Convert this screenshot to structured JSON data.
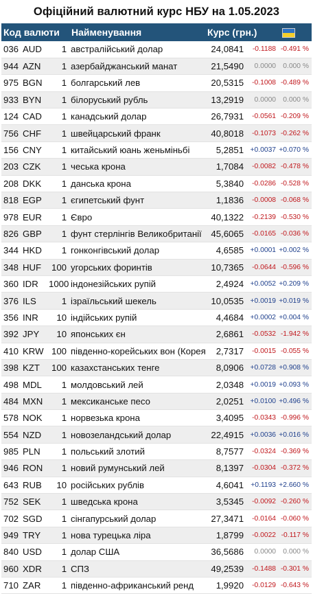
{
  "title": "Офіційний валютний курс НБУ на 1.05.2023",
  "headers": {
    "code": "Код валюти",
    "name": "Найменування",
    "rate": "Курс (грн.)"
  },
  "flag_colors": {
    "top": "#2f74c5",
    "bottom": "#f6cf2a"
  },
  "rows": [
    {
      "num": "036",
      "code": "AUD",
      "qty": "1",
      "name": "австралійський долар",
      "rate": "24,0841",
      "chg": "-0.1188",
      "pct": "-0.491 %",
      "dir": "neg"
    },
    {
      "num": "944",
      "code": "AZN",
      "qty": "1",
      "name": "азербайджанський манат",
      "rate": "21,5490",
      "chg": "0.0000",
      "pct": "0.000 %",
      "dir": "zero"
    },
    {
      "num": "975",
      "code": "BGN",
      "qty": "1",
      "name": "болгарський лев",
      "rate": "20,5315",
      "chg": "-0.1008",
      "pct": "-0.489 %",
      "dir": "neg"
    },
    {
      "num": "933",
      "code": "BYN",
      "qty": "1",
      "name": "білоруський рубль",
      "rate": "13,2919",
      "chg": "0.0000",
      "pct": "0.000 %",
      "dir": "zero"
    },
    {
      "num": "124",
      "code": "CAD",
      "qty": "1",
      "name": "канадський долар",
      "rate": "26,7931",
      "chg": "-0.0561",
      "pct": "-0.209 %",
      "dir": "neg"
    },
    {
      "num": "756",
      "code": "CHF",
      "qty": "1",
      "name": "швейцарський франк",
      "rate": "40,8018",
      "chg": "-0.1073",
      "pct": "-0.262 %",
      "dir": "neg"
    },
    {
      "num": "156",
      "code": "CNY",
      "qty": "1",
      "name": "китайський юань женьміньбі",
      "rate": "5,2851",
      "chg": "+0.0037",
      "pct": "+0.070 %",
      "dir": "pos"
    },
    {
      "num": "203",
      "code": "CZK",
      "qty": "1",
      "name": "чеська крона",
      "rate": "1,7084",
      "chg": "-0.0082",
      "pct": "-0.478 %",
      "dir": "neg"
    },
    {
      "num": "208",
      "code": "DKK",
      "qty": "1",
      "name": "данська крона",
      "rate": "5,3840",
      "chg": "-0.0286",
      "pct": "-0.528 %",
      "dir": "neg"
    },
    {
      "num": "818",
      "code": "EGP",
      "qty": "1",
      "name": "єгипетський фунт",
      "rate": "1,1836",
      "chg": "-0.0008",
      "pct": "-0.068 %",
      "dir": "neg"
    },
    {
      "num": "978",
      "code": "EUR",
      "qty": "1",
      "name": "Євро",
      "rate": "40,1322",
      "chg": "-0.2139",
      "pct": "-0.530 %",
      "dir": "neg"
    },
    {
      "num": "826",
      "code": "GBP",
      "qty": "1",
      "name": "фунт стерлінгів Великобританії",
      "rate": "45,6065",
      "chg": "-0.0165",
      "pct": "-0.036 %",
      "dir": "neg"
    },
    {
      "num": "344",
      "code": "HKD",
      "qty": "1",
      "name": "гонконгівський долар",
      "rate": "4,6585",
      "chg": "+0.0001",
      "pct": "+0.002 %",
      "dir": "pos"
    },
    {
      "num": "348",
      "code": "HUF",
      "qty": "100",
      "name": "угорських форинтів",
      "rate": "10,7365",
      "chg": "-0.0644",
      "pct": "-0.596 %",
      "dir": "neg"
    },
    {
      "num": "360",
      "code": "IDR",
      "qty": "1000",
      "name": "індонезійських рупій",
      "rate": "2,4924",
      "chg": "+0.0052",
      "pct": "+0.209 %",
      "dir": "pos"
    },
    {
      "num": "376",
      "code": "ILS",
      "qty": "1",
      "name": "ізраїльський шекель",
      "rate": "10,0535",
      "chg": "+0.0019",
      "pct": "+0.019 %",
      "dir": "pos"
    },
    {
      "num": "356",
      "code": "INR",
      "qty": "10",
      "name": "індійських рупій",
      "rate": "4,4684",
      "chg": "+0.0002",
      "pct": "+0.004 %",
      "dir": "pos"
    },
    {
      "num": "392",
      "code": "JPY",
      "qty": "10",
      "name": "японських єн",
      "rate": "2,6861",
      "chg": "-0.0532",
      "pct": "-1.942 %",
      "dir": "neg"
    },
    {
      "num": "410",
      "code": "KRW",
      "qty": "100",
      "name": "південно-корейських вон (Корея)",
      "rate": "2,7317",
      "chg": "-0.0015",
      "pct": "-0.055 %",
      "dir": "neg"
    },
    {
      "num": "398",
      "code": "KZT",
      "qty": "100",
      "name": "казахстанських тенге",
      "rate": "8,0906",
      "chg": "+0.0728",
      "pct": "+0.908 %",
      "dir": "pos"
    },
    {
      "num": "498",
      "code": "MDL",
      "qty": "1",
      "name": "молдовський лей",
      "rate": "2,0348",
      "chg": "+0.0019",
      "pct": "+0.093 %",
      "dir": "pos"
    },
    {
      "num": "484",
      "code": "MXN",
      "qty": "1",
      "name": "мексиканське песо",
      "rate": "2,0251",
      "chg": "+0.0100",
      "pct": "+0.496 %",
      "dir": "pos"
    },
    {
      "num": "578",
      "code": "NOK",
      "qty": "1",
      "name": "норвезька крона",
      "rate": "3,4095",
      "chg": "-0.0343",
      "pct": "-0.996 %",
      "dir": "neg"
    },
    {
      "num": "554",
      "code": "NZD",
      "qty": "1",
      "name": "новозеландський долар",
      "rate": "22,4915",
      "chg": "+0.0036",
      "pct": "+0.016 %",
      "dir": "pos"
    },
    {
      "num": "985",
      "code": "PLN",
      "qty": "1",
      "name": "польський злотий",
      "rate": "8,7577",
      "chg": "-0.0324",
      "pct": "-0.369 %",
      "dir": "neg"
    },
    {
      "num": "946",
      "code": "RON",
      "qty": "1",
      "name": "новий румунський лей",
      "rate": "8,1397",
      "chg": "-0.0304",
      "pct": "-0.372 %",
      "dir": "neg"
    },
    {
      "num": "643",
      "code": "RUB",
      "qty": "10",
      "name": "російських рублів",
      "rate": "4,6041",
      "chg": "+0.1193",
      "pct": "+2.660 %",
      "dir": "pos"
    },
    {
      "num": "752",
      "code": "SEK",
      "qty": "1",
      "name": "шведська крона",
      "rate": "3,5345",
      "chg": "-0.0092",
      "pct": "-0.260 %",
      "dir": "neg"
    },
    {
      "num": "702",
      "code": "SGD",
      "qty": "1",
      "name": "сінгапурський долар",
      "rate": "27,3471",
      "chg": "-0.0164",
      "pct": "-0.060 %",
      "dir": "neg"
    },
    {
      "num": "949",
      "code": "TRY",
      "qty": "1",
      "name": "нова турецька ліра",
      "rate": "1,8799",
      "chg": "-0.0022",
      "pct": "-0.117 %",
      "dir": "neg"
    },
    {
      "num": "840",
      "code": "USD",
      "qty": "1",
      "name": "долар США",
      "rate": "36,5686",
      "chg": "0.0000",
      "pct": "0.000 %",
      "dir": "zero"
    },
    {
      "num": "960",
      "code": "XDR",
      "qty": "1",
      "name": "СПЗ",
      "rate": "49,2539",
      "chg": "-0.1488",
      "pct": "-0.301 %",
      "dir": "neg"
    },
    {
      "num": "710",
      "code": "ZAR",
      "qty": "1",
      "name": "південно-африканський ренд",
      "rate": "1,9920",
      "chg": "-0.0129",
      "pct": "-0.643 %",
      "dir": "neg"
    }
  ]
}
